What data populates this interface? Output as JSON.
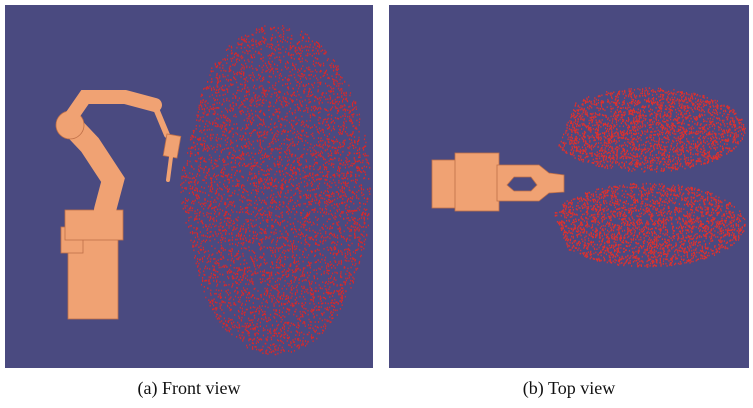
{
  "figure": {
    "panels": [
      {
        "caption": "(a) Front view"
      },
      {
        "caption": "(b) Top view"
      }
    ]
  }
}
